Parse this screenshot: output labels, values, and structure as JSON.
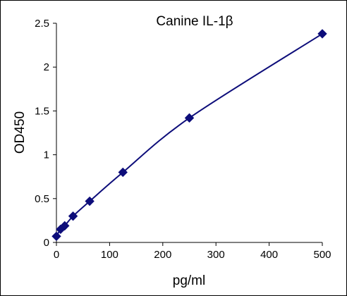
{
  "chart_data": {
    "type": "scatter",
    "title": "Canine IL-1β",
    "xlabel": "pg/ml",
    "ylabel": "OD450",
    "xlim": [
      0,
      500
    ],
    "ylim": [
      0,
      2.5
    ],
    "xticks": [
      "0",
      "100",
      "200",
      "300",
      "400",
      "500"
    ],
    "yticks": [
      "0",
      "0.5",
      "1",
      "1.5",
      "2",
      "2.5"
    ],
    "grid": false,
    "series": [
      {
        "x": [
          0,
          7.8,
          15.6,
          31.25,
          62.5,
          125,
          250,
          500
        ],
        "y": [
          0.07,
          0.15,
          0.19,
          0.3,
          0.47,
          0.8,
          1.42,
          2.38
        ],
        "marker": "diamond",
        "trendline": "smooth",
        "color": "#0d0d7a"
      }
    ]
  }
}
